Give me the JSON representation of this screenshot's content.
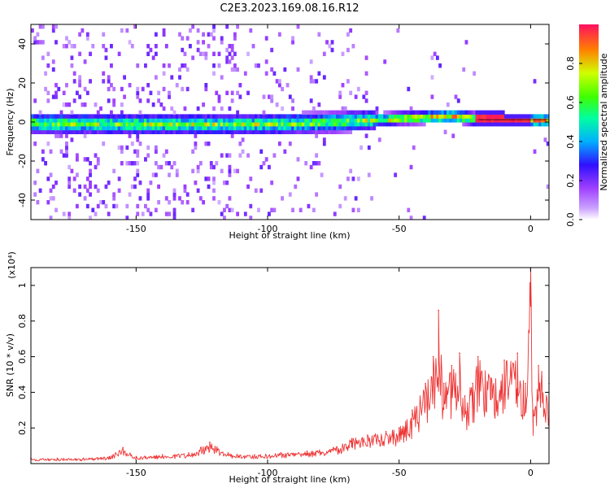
{
  "title": "C2E3.2023.169.08.16.R12",
  "chart_data": [
    {
      "type": "heatmap",
      "title": "C2E3.2023.169.08.16.R12",
      "xlabel": "Height of straight line (km)",
      "ylabel": "Frequency (Hz)",
      "xlim": [
        -190,
        7
      ],
      "ylim": [
        -50,
        50
      ],
      "xticks": [
        -150,
        -100,
        -50,
        0
      ],
      "yticks": [
        -40,
        -20,
        0,
        20,
        40
      ],
      "colorbar": {
        "label": "Normalized spectral amplitude",
        "range": [
          0,
          1
        ],
        "ticks": [
          "0.0",
          "0.2",
          "0.4",
          "0.6",
          "0.8"
        ],
        "colors": [
          "#ffffff",
          "#a040ff",
          "#3010ff",
          "#00b0ff",
          "#00ffa0",
          "#40ff00",
          "#d0ff00",
          "#ff8000",
          "#ff1060"
        ]
      },
      "ridge": {
        "x": [
          -190,
          -150,
          -100,
          -75,
          -50,
          -40,
          -30,
          -20,
          -10,
          0,
          7
        ],
        "y": [
          -1.5,
          -2,
          -2,
          -1,
          1,
          1.5,
          2,
          0.5,
          0,
          0,
          0
        ]
      }
    },
    {
      "type": "line",
      "xlabel": "Height of straight line (km)",
      "ylabel": "SNR (10 * v/v)",
      "yscale_label": "(x10⁴)",
      "xlim": [
        -190,
        7
      ],
      "ylim": [
        0,
        1.1
      ],
      "xticks": [
        -150,
        -100,
        -50,
        0
      ],
      "yticks": [
        0.2,
        0.4,
        0.6,
        0.8,
        1.0
      ],
      "series": [
        {
          "color": "#ee3333",
          "x": [
            -190,
            -180,
            -170,
            -160,
            -155,
            -150,
            -140,
            -130,
            -122,
            -115,
            -105,
            -95,
            -85,
            -75,
            -68,
            -62,
            -55,
            -50,
            -45,
            -40,
            -37,
            -35,
            -33,
            -30,
            -27,
            -25,
            -22,
            -20,
            -15,
            -10,
            -5,
            -2,
            0,
            1,
            3,
            7
          ],
          "y": [
            0.03,
            0.03,
            0.03,
            0.04,
            0.09,
            0.04,
            0.05,
            0.06,
            0.12,
            0.06,
            0.05,
            0.06,
            0.07,
            0.09,
            0.14,
            0.16,
            0.18,
            0.2,
            0.3,
            0.45,
            0.6,
            0.86,
            0.45,
            0.55,
            0.62,
            0.38,
            0.45,
            0.6,
            0.48,
            0.58,
            0.62,
            0.45,
            1.1,
            0.3,
            0.55,
            0.45
          ]
        }
      ]
    }
  ]
}
